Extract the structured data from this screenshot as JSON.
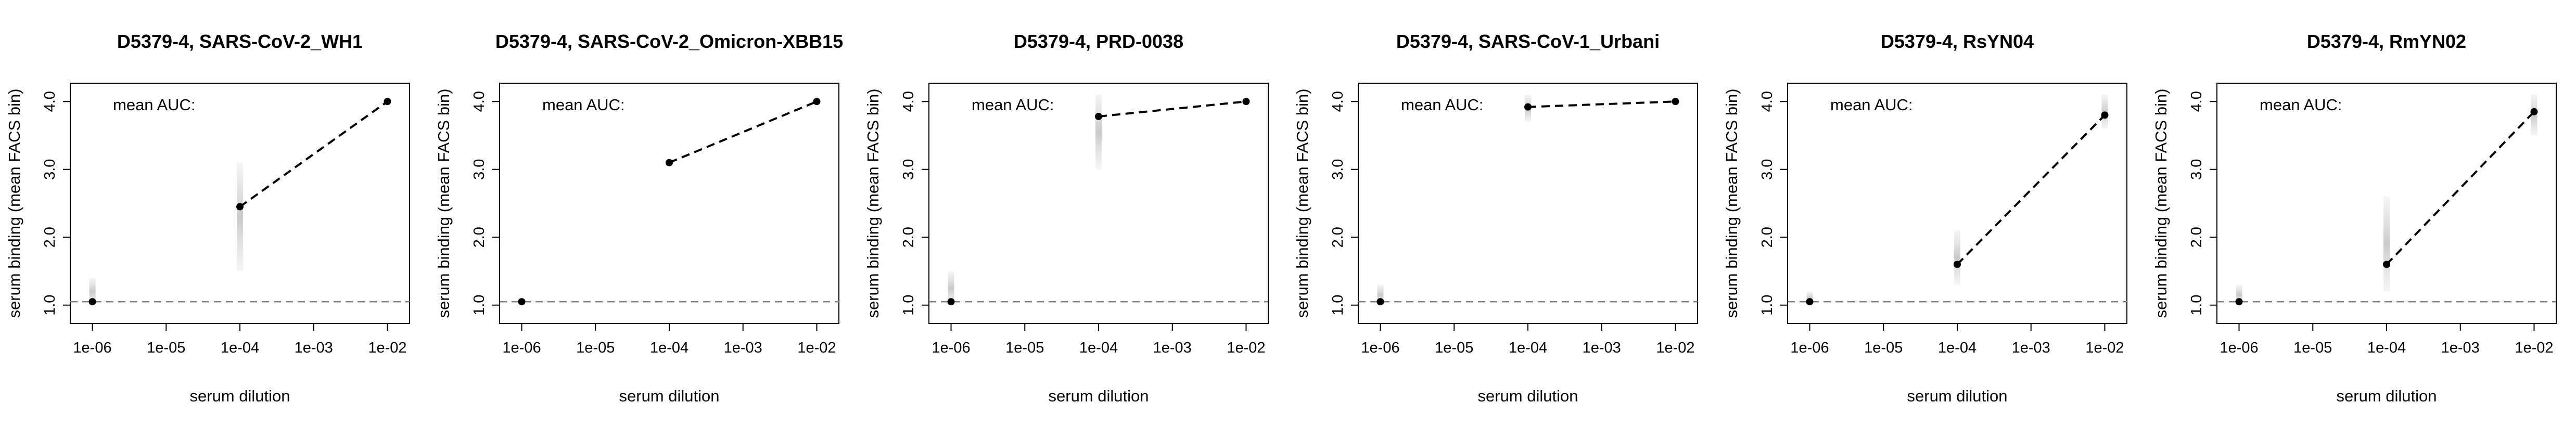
{
  "chart_data": [
    {
      "type": "scatter",
      "title": "D5379-4, SARS-CoV-2_WH1",
      "xlabel": "serum dilution",
      "ylabel": "serum binding (mean FACS bin)",
      "annotation": "mean AUC:",
      "x_scale": "log10",
      "x_ticks": [
        "1e-06",
        "1e-05",
        "1e-04",
        "1e-03",
        "1e-02"
      ],
      "y_ticks": [
        "1.0",
        "2.0",
        "3.0",
        "4.0"
      ],
      "baseline_y": 1.05,
      "points": [
        {
          "x": 1e-06,
          "y": 1.05,
          "spread": [
            1.0,
            1.4
          ]
        },
        {
          "x": 0.0001,
          "y": 2.45,
          "spread": [
            1.5,
            3.1
          ]
        },
        {
          "x": 0.01,
          "y": 4.0,
          "spread": [
            3.95,
            4.05
          ]
        }
      ]
    },
    {
      "type": "scatter",
      "title": "D5379-4, SARS-CoV-2_Omicron-XBB15",
      "xlabel": "serum dilution",
      "ylabel": "serum binding (mean FACS bin)",
      "annotation": "mean AUC:",
      "x_scale": "log10",
      "x_ticks": [
        "1e-06",
        "1e-05",
        "1e-04",
        "1e-03",
        "1e-02"
      ],
      "y_ticks": [
        "1.0",
        "2.0",
        "3.0",
        "4.0"
      ],
      "baseline_y": 1.05,
      "points": [
        {
          "x": 1e-06,
          "y": 1.05,
          "spread": [
            1.0,
            1.1
          ]
        },
        {
          "x": 0.0001,
          "y": 3.1,
          "spread": [
            3.05,
            3.15
          ]
        },
        {
          "x": 0.01,
          "y": 4.0,
          "spread": [
            3.95,
            4.05
          ]
        }
      ]
    },
    {
      "type": "scatter",
      "title": "D5379-4, PRD-0038",
      "xlabel": "serum dilution",
      "ylabel": "serum binding (mean FACS bin)",
      "annotation": "mean AUC:",
      "x_scale": "log10",
      "x_ticks": [
        "1e-06",
        "1e-05",
        "1e-04",
        "1e-03",
        "1e-02"
      ],
      "y_ticks": [
        "1.0",
        "2.0",
        "3.0",
        "4.0"
      ],
      "baseline_y": 1.05,
      "points": [
        {
          "x": 1e-06,
          "y": 1.05,
          "spread": [
            1.0,
            1.5
          ]
        },
        {
          "x": 0.0001,
          "y": 3.78,
          "spread": [
            3.0,
            4.1
          ]
        },
        {
          "x": 0.01,
          "y": 4.0,
          "spread": [
            3.95,
            4.05
          ]
        }
      ]
    },
    {
      "type": "scatter",
      "title": "D5379-4, SARS-CoV-1_Urbani",
      "xlabel": "serum dilution",
      "ylabel": "serum binding (mean FACS bin)",
      "annotation": "mean AUC:",
      "x_scale": "log10",
      "x_ticks": [
        "1e-06",
        "1e-05",
        "1e-04",
        "1e-03",
        "1e-02"
      ],
      "y_ticks": [
        "1.0",
        "2.0",
        "3.0",
        "4.0"
      ],
      "baseline_y": 1.05,
      "points": [
        {
          "x": 1e-06,
          "y": 1.05,
          "spread": [
            1.0,
            1.3
          ]
        },
        {
          "x": 0.0001,
          "y": 3.92,
          "spread": [
            3.7,
            4.1
          ]
        },
        {
          "x": 0.01,
          "y": 4.0,
          "spread": [
            3.95,
            4.05
          ]
        }
      ]
    },
    {
      "type": "scatter",
      "title": "D5379-4, RsYN04",
      "xlabel": "serum dilution",
      "ylabel": "serum binding (mean FACS bin)",
      "annotation": "mean AUC:",
      "x_scale": "log10",
      "x_ticks": [
        "1e-06",
        "1e-05",
        "1e-04",
        "1e-03",
        "1e-02"
      ],
      "y_ticks": [
        "1.0",
        "2.0",
        "3.0",
        "4.0"
      ],
      "baseline_y": 1.05,
      "points": [
        {
          "x": 1e-06,
          "y": 1.05,
          "spread": [
            1.0,
            1.2
          ]
        },
        {
          "x": 0.0001,
          "y": 1.6,
          "spread": [
            1.3,
            2.1
          ]
        },
        {
          "x": 0.01,
          "y": 3.8,
          "spread": [
            3.6,
            4.1
          ]
        }
      ]
    },
    {
      "type": "scatter",
      "title": "D5379-4, RmYN02",
      "xlabel": "serum dilution",
      "ylabel": "serum binding (mean FACS bin)",
      "annotation": "mean AUC:",
      "x_scale": "log10",
      "x_ticks": [
        "1e-06",
        "1e-05",
        "1e-04",
        "1e-03",
        "1e-02"
      ],
      "y_ticks": [
        "1.0",
        "2.0",
        "3.0",
        "4.0"
      ],
      "baseline_y": 1.05,
      "points": [
        {
          "x": 1e-06,
          "y": 1.05,
          "spread": [
            1.0,
            1.3
          ]
        },
        {
          "x": 0.0001,
          "y": 1.6,
          "spread": [
            1.2,
            2.6
          ]
        },
        {
          "x": 0.01,
          "y": 3.85,
          "spread": [
            3.5,
            4.1
          ]
        }
      ]
    }
  ]
}
